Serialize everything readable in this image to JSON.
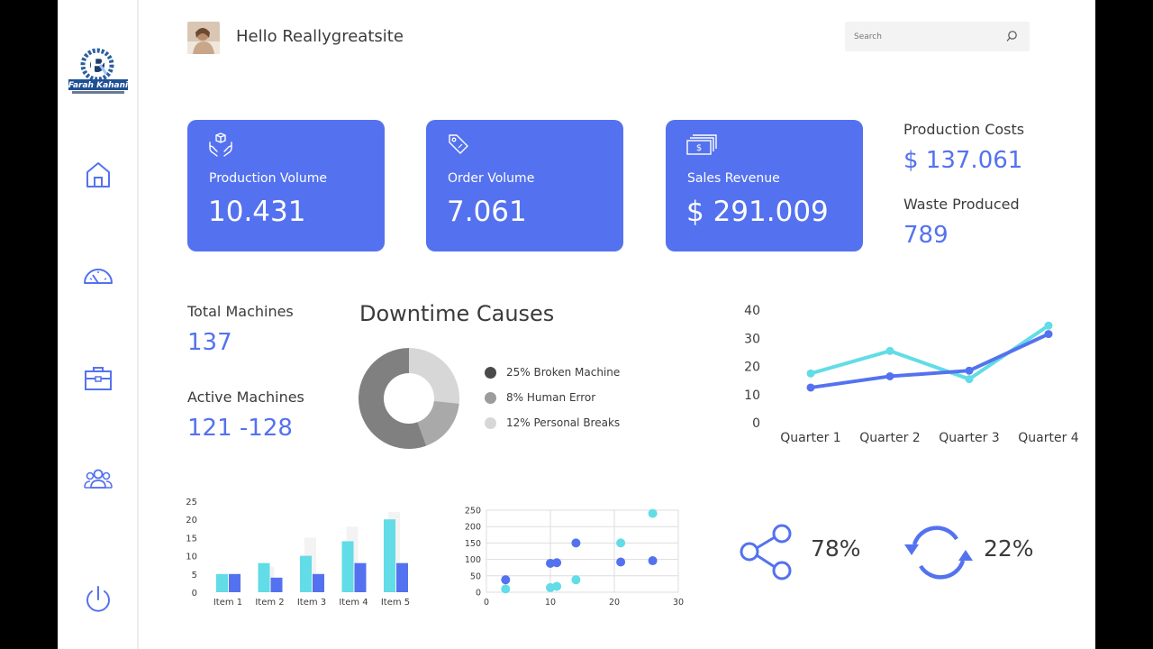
{
  "header": {
    "greeting": "Hello Reallygreatsite",
    "search_placeholder": "Search"
  },
  "sidebar": {
    "logo_text": "Farah Kahani",
    "items": [
      {
        "icon": "home-icon"
      },
      {
        "icon": "speedometer-icon"
      },
      {
        "icon": "briefcase-icon"
      },
      {
        "icon": "users-icon"
      },
      {
        "icon": "power-icon"
      }
    ]
  },
  "kpis": [
    {
      "label": "Production Volume",
      "value": "10.431",
      "icon": "hands-box-icon"
    },
    {
      "label": "Order Volume",
      "value": "7.061",
      "icon": "price-tag-icon"
    },
    {
      "label": "Sales Revenue",
      "value": "$ 291.009",
      "icon": "cash-icon"
    }
  ],
  "side_stats": {
    "production_costs_label": "Production Costs",
    "production_costs_value": "$ 137.061",
    "waste_label": "Waste Produced",
    "waste_value": "789"
  },
  "machines": {
    "total_label": "Total Machines",
    "total_value": "137",
    "active_label": "Active Machines",
    "active_value": "121 -128"
  },
  "colors": {
    "accent": "#5472ef",
    "cyan": "#62dce6",
    "dark_gray": "#808080",
    "mid_gray": "#a9a9a9",
    "light_gray": "#d7d7d7"
  },
  "share_pct": "78%",
  "refresh_pct": "22%",
  "chart_data": [
    {
      "type": "pie",
      "title": "Downtime Causes",
      "series": [
        {
          "name": "25% Broken Machine",
          "value": 25,
          "color": "#808080"
        },
        {
          "name": "8% Human Error",
          "value": 8,
          "color": "#a9a9a9"
        },
        {
          "name": "12% Personal Breaks",
          "value": 12,
          "color": "#d7d7d7"
        }
      ]
    },
    {
      "type": "line",
      "categories": [
        "Quarter 1",
        "Quarter 2",
        "Quarter 3",
        "Quarter 4"
      ],
      "ylim": [
        0,
        40
      ],
      "yticks": [
        0,
        10,
        20,
        30,
        40
      ],
      "series": [
        {
          "values": [
            17.5,
            25.5,
            15.5,
            34.5
          ],
          "color": "#62dce6"
        },
        {
          "values": [
            12.5,
            16.5,
            18.5,
            31.5
          ],
          "color": "#5472ef"
        }
      ]
    },
    {
      "type": "bar",
      "categories": [
        "Item 1",
        "Item 2",
        "Item 3",
        "Item 4",
        "Item 5"
      ],
      "ylim": [
        0,
        25
      ],
      "yticks": [
        0,
        5,
        10,
        15,
        20,
        25
      ],
      "series": [
        {
          "values": [
            4,
            7,
            15,
            18,
            22
          ],
          "color": "#f3f3f3"
        },
        {
          "values": [
            5,
            8,
            10,
            14,
            20
          ],
          "color": "#62dce6"
        },
        {
          "values": [
            5,
            4,
            5,
            8,
            8
          ],
          "color": "#5472ef"
        }
      ]
    },
    {
      "type": "scatter",
      "xlim": [
        0,
        30
      ],
      "ylim": [
        0,
        250
      ],
      "xticks": [
        0,
        10,
        20,
        30
      ],
      "yticks": [
        0,
        50,
        100,
        150,
        200,
        250
      ],
      "grid": true,
      "series": [
        {
          "color": "#5472ef",
          "x": [
            3,
            10,
            11,
            14,
            21,
            26
          ],
          "y": [
            38,
            88,
            90,
            150,
            92,
            96
          ]
        },
        {
          "color": "#62dce6",
          "x": [
            3,
            10,
            11,
            14,
            21,
            26
          ],
          "y": [
            10,
            14,
            18,
            38,
            150,
            240
          ]
        }
      ]
    }
  ]
}
